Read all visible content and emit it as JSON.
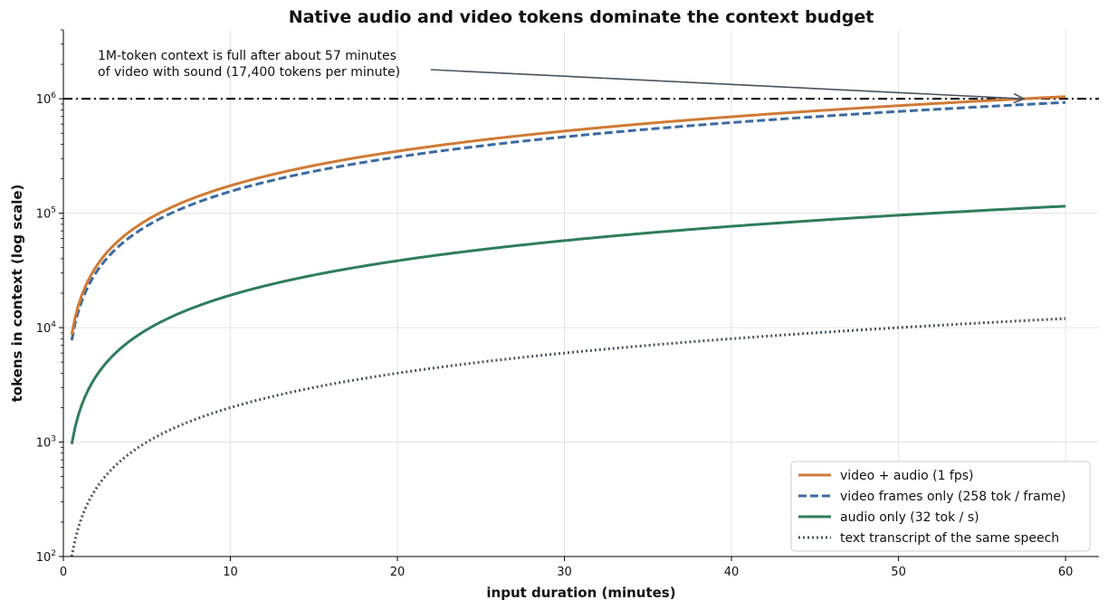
{
  "chart_data": {
    "type": "line",
    "title": "Native audio and video tokens dominate the context budget",
    "xlabel": "input duration (minutes)",
    "ylabel": "tokens in context (log scale)",
    "xlim": [
      0,
      62
    ],
    "ylim": [
      100,
      4000000
    ],
    "yscale": "log",
    "grid": true,
    "legend_position": "lower-right",
    "x_ticks": [
      0,
      10,
      20,
      30,
      40,
      50,
      60
    ],
    "x_tick_labels": [
      "0",
      "10",
      "20",
      "30",
      "40",
      "50",
      "60"
    ],
    "y_ticks": [
      {
        "value": 100,
        "base": "10",
        "exp": "2"
      },
      {
        "value": 1000,
        "base": "10",
        "exp": "3"
      },
      {
        "value": 10000,
        "base": "10",
        "exp": "4"
      },
      {
        "value": 100000,
        "base": "10",
        "exp": "5"
      },
      {
        "value": 1000000,
        "base": "10",
        "exp": "6"
      }
    ],
    "x_range": [
      0.5,
      60
    ],
    "series": [
      {
        "name": "video + audio (1 fps)",
        "tokens_per_minute": 17400,
        "color": "#d07a35",
        "dash": "solid"
      },
      {
        "name": "video frames only (258 tok / frame)",
        "tokens_per_minute": 15480,
        "color": "#3b6aa0",
        "dash": "dashed"
      },
      {
        "name": "audio only (32 tok / s)",
        "tokens_per_minute": 1920,
        "color": "#2e7d5b",
        "dash": "solid"
      },
      {
        "name": "text transcript of the same speech",
        "tokens_per_minute": 200,
        "color": "#4a5260",
        "dash": "dotted"
      }
    ],
    "reference_line": {
      "y": 1000000,
      "color": "#000000"
    },
    "annotation": {
      "lines": [
        "1M-token context is full after about 57 minutes",
        "of video with sound (17,400 tokens per minute)"
      ],
      "point": {
        "x": 57.5,
        "y": 1000000
      }
    }
  }
}
